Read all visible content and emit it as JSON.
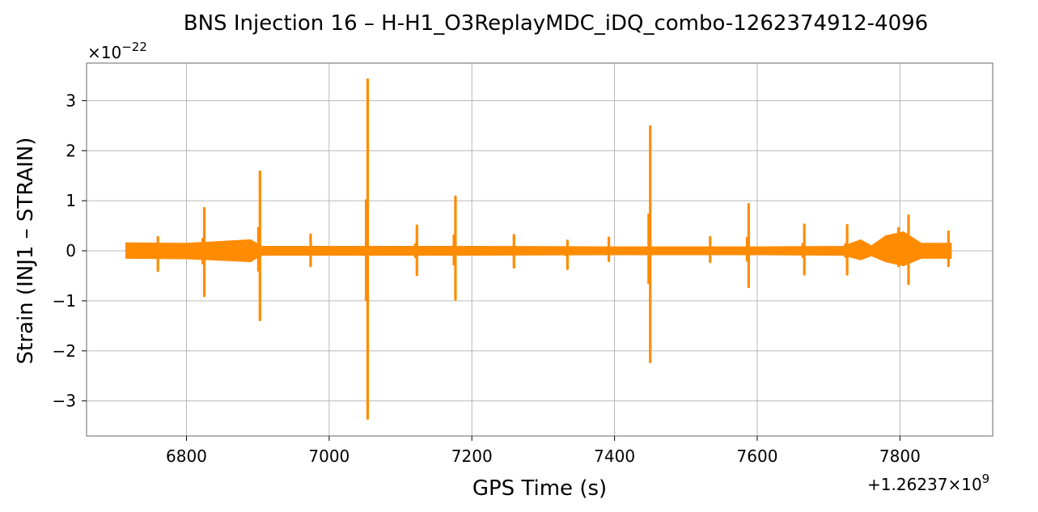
{
  "chart_data": {
    "type": "line",
    "title": "BNS Injection 16 – H-H1_O3ReplayMDC_iDQ_combo-1262374912-4096",
    "xlabel": "GPS Time (s)",
    "ylabel": "Strain (INJ1 – STRAIN)",
    "x_offset_label": "+1.26237×10",
    "x_offset_exp": "9",
    "y_scale_label": "×10",
    "y_scale_exp": "−22",
    "xlim": [
      6660,
      7930
    ],
    "ylim": [
      -3.7,
      3.75
    ],
    "x_ticks": [
      6800,
      7000,
      7200,
      7400,
      7600,
      7800
    ],
    "x_tick_labels": [
      "6800",
      "7000",
      "7200",
      "7400",
      "7600",
      "7800"
    ],
    "y_ticks": [
      -3,
      -2,
      -1,
      0,
      1,
      2,
      3
    ],
    "y_tick_labels": [
      "−3",
      "−2",
      "−1",
      "0",
      "1",
      "2",
      "3"
    ],
    "grid": true,
    "color": "#ff8c00",
    "series": [
      {
        "x_range": [
          6715,
          7872
        ],
        "baseline": [
          {
            "x": 6715,
            "upper": 0.16,
            "lower": -0.15
          },
          {
            "x": 6800,
            "upper": 0.15,
            "lower": -0.16
          },
          {
            "x": 6890,
            "upper": 0.22,
            "lower": -0.22
          },
          {
            "x": 6905,
            "upper": 0.09,
            "lower": -0.09
          },
          {
            "x": 7000,
            "upper": 0.09,
            "lower": -0.09
          },
          {
            "x": 7200,
            "upper": 0.09,
            "lower": -0.09
          },
          {
            "x": 7400,
            "upper": 0.08,
            "lower": -0.08
          },
          {
            "x": 7600,
            "upper": 0.08,
            "lower": -0.08
          },
          {
            "x": 7720,
            "upper": 0.09,
            "lower": -0.09
          },
          {
            "x": 7745,
            "upper": 0.22,
            "lower": -0.18
          },
          {
            "x": 7760,
            "upper": 0.1,
            "lower": -0.1
          },
          {
            "x": 7780,
            "upper": 0.3,
            "lower": -0.22
          },
          {
            "x": 7805,
            "upper": 0.38,
            "lower": -0.3
          },
          {
            "x": 7830,
            "upper": 0.15,
            "lower": -0.15
          },
          {
            "x": 7872,
            "upper": 0.15,
            "lower": -0.15
          }
        ],
        "spikes": [
          {
            "x": 6760,
            "max": 0.27,
            "min": -0.4
          },
          {
            "x": 6825,
            "max": 0.85,
            "min": -0.9
          },
          {
            "x": 6903,
            "max": 1.58,
            "min": -1.38
          },
          {
            "x": 6974,
            "max": 0.32,
            "min": -0.3
          },
          {
            "x": 7054,
            "max": 3.42,
            "min": -3.35
          },
          {
            "x": 7123,
            "max": 0.5,
            "min": -0.48
          },
          {
            "x": 7177,
            "max": 1.08,
            "min": -0.97
          },
          {
            "x": 7259,
            "max": 0.31,
            "min": -0.33
          },
          {
            "x": 7334,
            "max": 0.2,
            "min": -0.36
          },
          {
            "x": 7392,
            "max": 0.26,
            "min": -0.2
          },
          {
            "x": 7450,
            "max": 2.48,
            "min": -2.22
          },
          {
            "x": 7534,
            "max": 0.27,
            "min": -0.22
          },
          {
            "x": 7588,
            "max": 0.93,
            "min": -0.72
          },
          {
            "x": 7666,
            "max": 0.52,
            "min": -0.47
          },
          {
            "x": 7726,
            "max": 0.51,
            "min": -0.47
          },
          {
            "x": 7798,
            "max": 0.45,
            "min": -0.3
          },
          {
            "x": 7812,
            "max": 0.7,
            "min": -0.66
          },
          {
            "x": 7868,
            "max": 0.38,
            "min": -0.3
          }
        ]
      }
    ]
  }
}
